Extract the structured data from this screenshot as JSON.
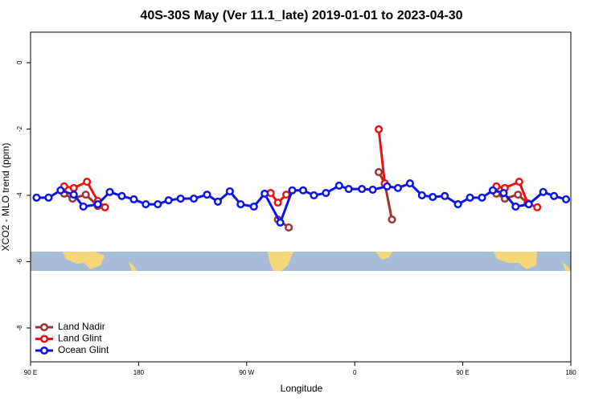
{
  "chart_data": {
    "type": "line",
    "title": "40S-30S May (Ver 11.1_late)   2019-01-01 to 2023-04-30",
    "x_label": "Longitude",
    "y_label": "XCO2 - MLO trend (ppm)",
    "xlim": [
      90,
      540
    ],
    "xticks": [
      {
        "value": 90,
        "label": "90 E"
      },
      180,
      {
        "value": 270,
        "label": "90 W"
      },
      {
        "value": 360,
        "label": "0"
      },
      {
        "value": 450,
        "label": "90 E"
      },
      {
        "value": 540,
        "label": "180"
      }
    ],
    "ylim": [
      -9.02,
      0.92
    ],
    "yticks": [
      0,
      -2,
      -4,
      -6,
      -8
    ],
    "legend": "bottom-left",
    "series": [
      {
        "name": "Land Nadir",
        "color": "#a03232",
        "x": [
          118,
          125,
          136,
          146,
          null,
          296,
          305,
          null,
          380,
          385,
          391,
          null,
          478,
          485,
          496,
          505
        ],
        "values": [
          -3.95,
          -4.1,
          -3.98,
          -4.32,
          null,
          -4.73,
          -4.97,
          null,
          -3.3,
          -3.64,
          -4.73,
          null,
          -3.95,
          -4.1,
          -3.98,
          -4.27
        ]
      },
      {
        "name": "Land Glint",
        "color": "#ee1111",
        "x": [
          118,
          126,
          137,
          146,
          152,
          null,
          290,
          296,
          303,
          null,
          380,
          385,
          null,
          478,
          485,
          497,
          504,
          512
        ],
        "values": [
          -3.73,
          -3.78,
          -3.59,
          -4.17,
          -4.36,
          null,
          -3.93,
          -4.22,
          -3.98,
          null,
          -2.01,
          -3.64,
          null,
          -3.73,
          -3.78,
          -3.59,
          -4.24,
          -4.36
        ]
      },
      {
        "name": "Ocean Glint",
        "color": "#0a14e6",
        "x": [
          95,
          105,
          115,
          126,
          134,
          146,
          156,
          166,
          176,
          186,
          196,
          205,
          215,
          226,
          237,
          246,
          256,
          265,
          276,
          285,
          298,
          308,
          317,
          326,
          336,
          347,
          355,
          366,
          375,
          387,
          396,
          406,
          416,
          425,
          435,
          446,
          456,
          466,
          475,
          484,
          494,
          505,
          517,
          526,
          536
        ],
        "values": [
          -4.07,
          -4.07,
          -3.85,
          -3.98,
          -4.34,
          -4.27,
          -3.9,
          -4.02,
          -4.12,
          -4.27,
          -4.27,
          -4.15,
          -4.1,
          -4.1,
          -3.98,
          -4.19,
          -3.88,
          -4.27,
          -4.34,
          -3.95,
          -4.82,
          -3.85,
          -3.85,
          -4.0,
          -3.93,
          -3.71,
          -3.81,
          -3.81,
          -3.83,
          -3.73,
          -3.78,
          -3.64,
          -4.0,
          -4.05,
          -4.02,
          -4.27,
          -4.07,
          -4.07,
          -3.85,
          -3.93,
          -4.34,
          -4.27,
          -3.9,
          -4.02,
          -4.12
        ]
      }
    ]
  }
}
